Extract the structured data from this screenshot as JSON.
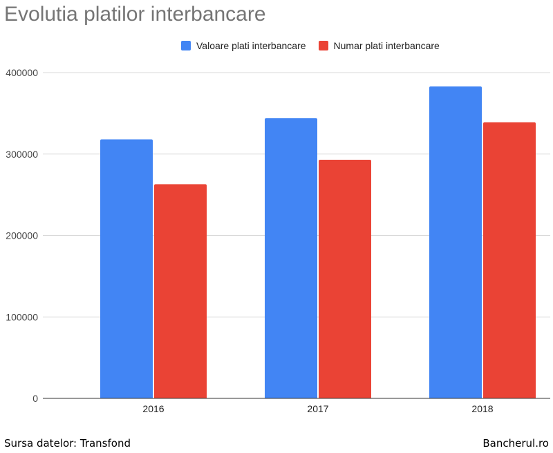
{
  "chart_data": {
    "type": "bar",
    "title": "Evolutia platilor interbancare",
    "categories": [
      "2016",
      "2017",
      "2018"
    ],
    "series": [
      {
        "name": "Valoare plati interbancare",
        "color": "#4285f4",
        "values": [
          318000,
          344000,
          383000
        ]
      },
      {
        "name": "Numar plati interbancare",
        "color": "#ea4335",
        "values": [
          263000,
          293000,
          339000
        ]
      }
    ],
    "ylim": [
      0,
      400000
    ],
    "yticks": [
      "0",
      "100000",
      "200000",
      "300000",
      "400000"
    ],
    "grid": true,
    "legend_position": "top"
  },
  "footer": {
    "source": "Sursa datelor: Transfond",
    "site": "Bancherul.ro"
  }
}
